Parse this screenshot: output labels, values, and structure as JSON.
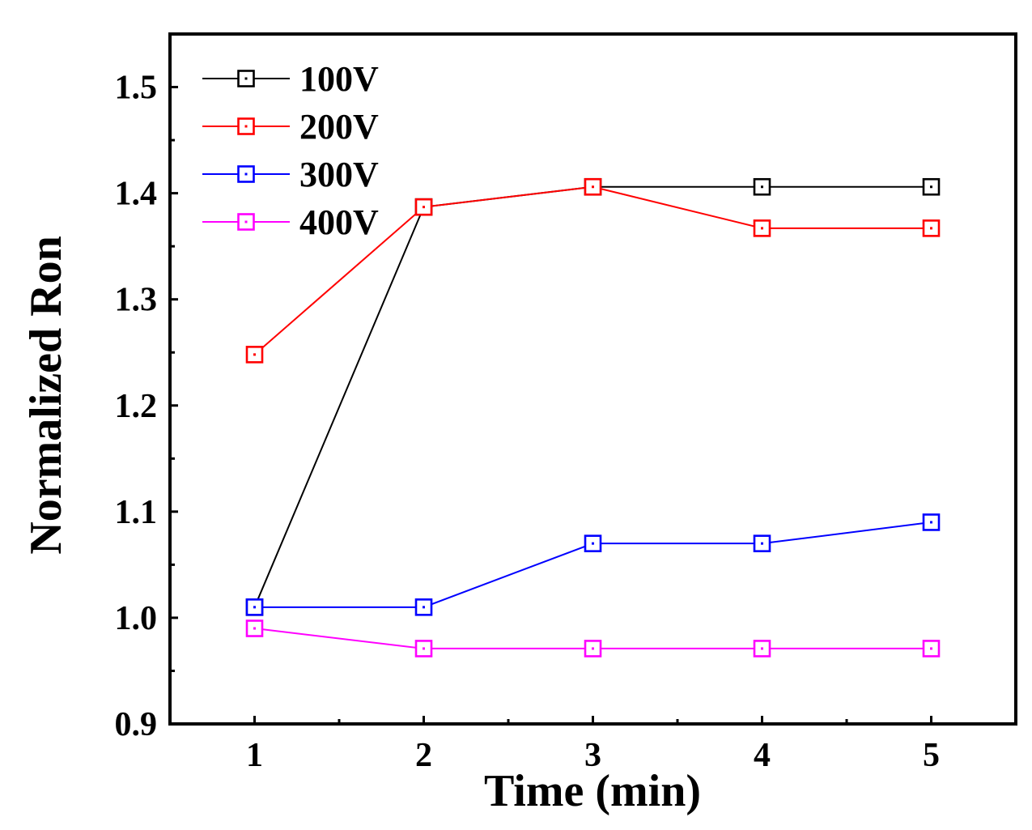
{
  "chart_data": {
    "type": "line",
    "title": "",
    "xlabel": "Time (min)",
    "ylabel": "Normalized Ron",
    "x": [
      1,
      2,
      3,
      4,
      5
    ],
    "xlim": [
      0.5,
      5.5
    ],
    "ylim": [
      0.9,
      1.55
    ],
    "xticks": [
      "1",
      "2",
      "3",
      "4",
      "5"
    ],
    "yticks": [
      "0.9",
      "1.0",
      "1.1",
      "1.2",
      "1.3",
      "1.4",
      "1.5"
    ],
    "grid": false,
    "legend_position": "top-left",
    "marker": "open-square",
    "series": [
      {
        "name": "100V",
        "color": "#000000",
        "values": [
          1.01,
          1.387,
          1.406,
          1.406,
          1.406
        ]
      },
      {
        "name": "200V",
        "color": "#ff0000",
        "values": [
          1.248,
          1.387,
          1.406,
          1.367,
          1.367
        ]
      },
      {
        "name": "300V",
        "color": "#0000ff",
        "values": [
          1.01,
          1.01,
          1.07,
          1.07,
          1.09
        ]
      },
      {
        "name": "400V",
        "color": "#ff00ff",
        "values": [
          0.99,
          0.971,
          0.971,
          0.971,
          0.971
        ]
      }
    ]
  }
}
